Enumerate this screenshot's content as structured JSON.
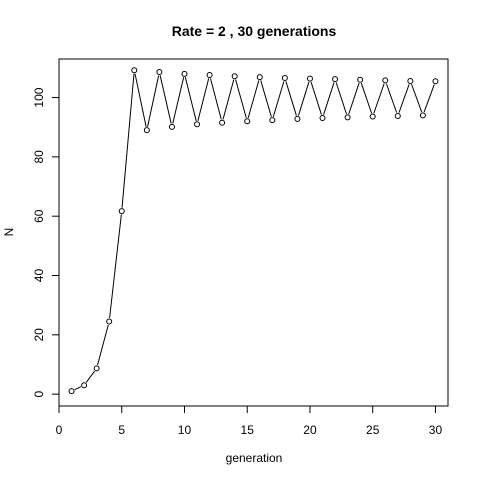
{
  "chart_data": {
    "type": "line",
    "title": "Rate = 2 ,  30 generations",
    "xlabel": "generation",
    "ylabel": "N",
    "xlim": [
      0,
      31
    ],
    "ylim": [
      -4,
      113
    ],
    "xticks": [
      0,
      5,
      10,
      15,
      20,
      25,
      30
    ],
    "yticks": [
      0,
      20,
      40,
      60,
      80,
      100
    ],
    "grid": false,
    "legend": "none",
    "markers": "open-circle",
    "series": [
      {
        "x": [
          1,
          2,
          3,
          4,
          5,
          6,
          7,
          8,
          9,
          10,
          11,
          12,
          13,
          14,
          15,
          16,
          17,
          18,
          19,
          20,
          21,
          22,
          23,
          24,
          25,
          26,
          27,
          28,
          29,
          30
        ],
        "values": [
          1.0,
          3.0,
          8.7,
          24.5,
          61.7,
          109.2,
          89.0,
          108.6,
          90.1,
          108.0,
          91.0,
          107.6,
          91.5,
          107.2,
          92.0,
          106.9,
          92.4,
          106.6,
          92.8,
          106.4,
          93.1,
          106.2,
          93.3,
          106.0,
          93.6,
          105.8,
          93.8,
          105.6,
          94.0,
          105.5
        ]
      }
    ]
  }
}
